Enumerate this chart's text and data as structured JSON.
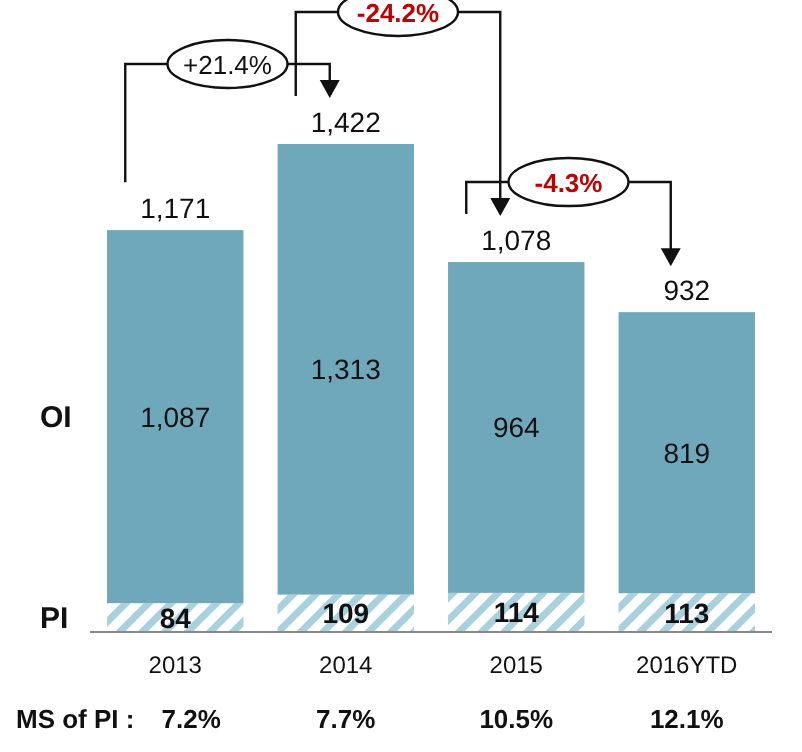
{
  "chart_data": {
    "type": "bar",
    "stacked": true,
    "categories": [
      "2013",
      "2014",
      "2015",
      "2016YTD"
    ],
    "series": [
      {
        "name": "PI",
        "color": "#a9d0dd",
        "values": [
          84,
          109,
          114,
          113
        ],
        "value_labels": [
          "84",
          "109",
          "114",
          "113"
        ]
      },
      {
        "name": "OI",
        "color": "#6fa7bb",
        "values": [
          1087,
          1313,
          964,
          819
        ],
        "value_labels": [
          "1,087",
          "1,313",
          "964",
          "819"
        ]
      }
    ],
    "totals": [
      "1,171",
      "1,422",
      "1,078",
      "932"
    ],
    "annotations": [
      "+21.4%",
      "-24.2%",
      "-4.3%",
      "MS of PI :",
      "7.2%",
      "7.7%",
      "10.5%",
      "12.1%"
    ],
    "legend": false
  }
}
